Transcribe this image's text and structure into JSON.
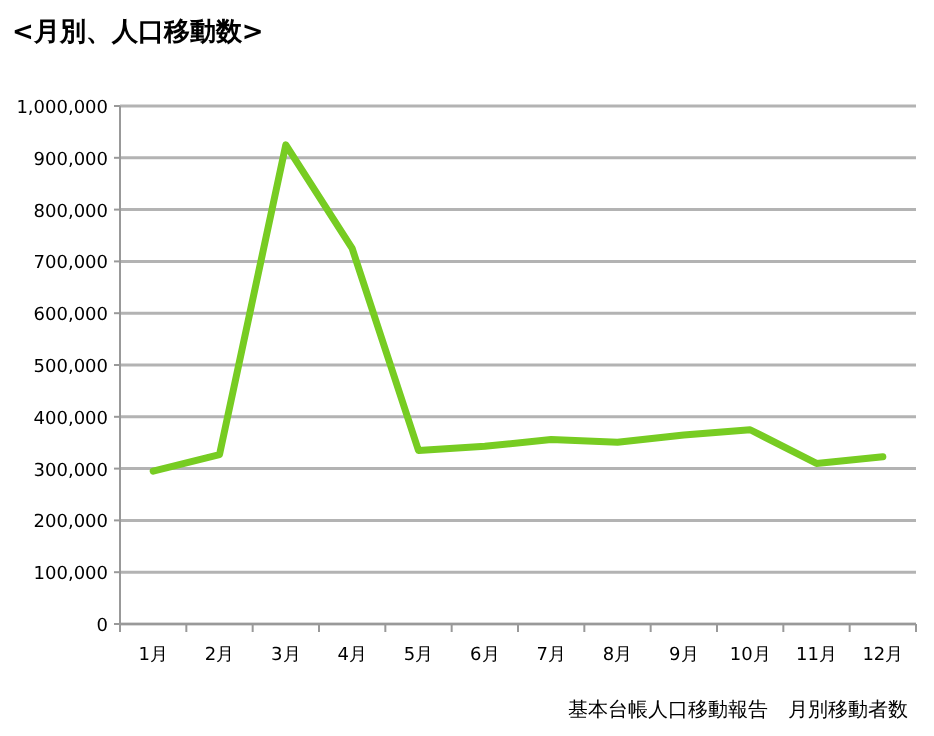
{
  "chart_data": {
    "type": "line",
    "title": "<月別、人口移動数>",
    "categories": [
      "1月",
      "2月",
      "3月",
      "4月",
      "5月",
      "6月",
      "7月",
      "8月",
      "9月",
      "10月",
      "11月",
      "12月"
    ],
    "series": [
      {
        "color": "#77cc22",
        "values": [
          295000,
          327000,
          925000,
          725000,
          335000,
          343000,
          356000,
          351000,
          365000,
          375000,
          310000,
          323000
        ]
      }
    ],
    "ylim": [
      0,
      1000000
    ],
    "yticks": [
      {
        "value": 0,
        "label": "0"
      },
      {
        "value": 100000,
        "label": "100,000"
      },
      {
        "value": 200000,
        "label": "200,000"
      },
      {
        "value": 300000,
        "label": "300,000"
      },
      {
        "value": 400000,
        "label": "400,000"
      },
      {
        "value": 500000,
        "label": "500,000"
      },
      {
        "value": 600000,
        "label": "600,000"
      },
      {
        "value": 700000,
        "label": "700,000"
      },
      {
        "value": 800000,
        "label": "800,000"
      },
      {
        "value": 900000,
        "label": "900,000"
      },
      {
        "value": 1000000,
        "label": "1,000,000"
      }
    ],
    "grid": "y",
    "marker": "none",
    "line_style": "solid",
    "annotations": [
      "基本台帳人口移動報告　月別移動者数"
    ]
  }
}
